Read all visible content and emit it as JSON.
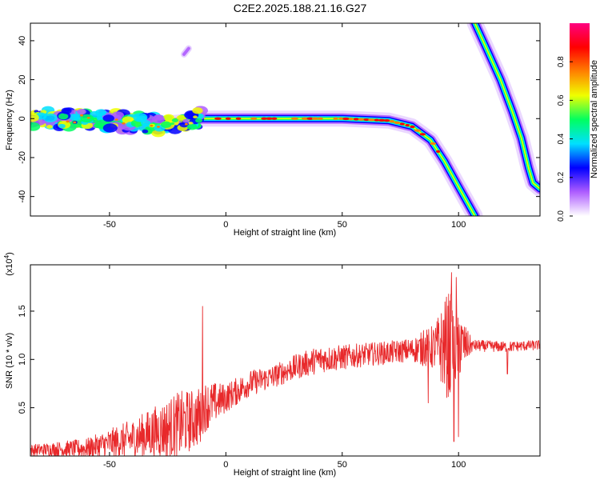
{
  "title": "C2E2.2025.188.21.16.G27",
  "chart_data": [
    {
      "type": "heatmap",
      "xlabel": "Height of straight line (km)",
      "ylabel": "Frequency (Hz)",
      "xlim": [
        -84,
        135
      ],
      "ylim": [
        -50,
        49
      ],
      "xticks": [
        -50,
        0,
        50,
        100
      ],
      "yticks": [
        40,
        20,
        0,
        -20,
        -40
      ],
      "colorbar": {
        "label": "Normalized spectral amplitude",
        "range": [
          0,
          1
        ],
        "ticks": [
          "0.0",
          "0.2",
          "0.4",
          "0.6",
          "0.8"
        ],
        "colors": [
          "#ffffff",
          "#ae5cff",
          "#0000ff",
          "#00e0ff",
          "#00ff60",
          "#f0ff00",
          "#ff8000",
          "#ff0000",
          "#ff0080"
        ]
      },
      "traces": [
        {
          "name": "",
          "points": [
            [
              -84,
              0
            ],
            [
              -60,
              0
            ],
            [
              -40,
              -2
            ],
            [
              -30,
              -3
            ],
            [
              -20,
              -2
            ],
            [
              -12,
              0
            ],
            [
              0,
              0
            ],
            [
              20,
              0
            ],
            [
              50,
              0
            ],
            [
              70,
              -1
            ],
            [
              80,
              -4
            ],
            [
              88,
              -11
            ],
            [
              94,
              -22
            ],
            [
              100,
              -35
            ],
            [
              107,
              -50
            ]
          ]
        },
        {
          "name": "",
          "points": [
            [
              107,
              49
            ],
            [
              112,
              36
            ],
            [
              118,
              20
            ],
            [
              123,
              4
            ],
            [
              127,
              -10
            ],
            [
              130,
              -25
            ],
            [
              132,
              -33
            ],
            [
              135,
              -36
            ]
          ]
        },
        {
          "name": "",
          "points": [
            [
              -18,
              33
            ],
            [
              -16,
              36
            ]
          ]
        }
      ]
    },
    {
      "type": "line",
      "xlabel": "Height of straight line (km)",
      "ylabel": "SNR (10 * v/v)",
      "y_multiplier": "(x10^4)",
      "y_multiplier_base": "(x10",
      "y_multiplier_exp": "4",
      "y_multiplier_close": ")",
      "xlim": [
        -84,
        135
      ],
      "ylim": [
        0,
        1.98
      ],
      "xticks": [
        -50,
        0,
        50,
        100
      ],
      "yticks": [
        0.5,
        1.0,
        1.5
      ],
      "series": [
        {
          "color": "#e8292b",
          "trend": [
            [
              -84,
              0.06
            ],
            [
              -60,
              0.08
            ],
            [
              -40,
              0.18
            ],
            [
              -20,
              0.32
            ],
            [
              -12,
              0.4
            ],
            [
              -10,
              0.5
            ],
            [
              0,
              0.6
            ],
            [
              10,
              0.75
            ],
            [
              20,
              0.82
            ],
            [
              30,
              0.92
            ],
            [
              40,
              1.0
            ],
            [
              50,
              1.02
            ],
            [
              60,
              1.05
            ],
            [
              70,
              1.07
            ],
            [
              80,
              1.1
            ],
            [
              88,
              1.12
            ],
            [
              95,
              1.14
            ],
            [
              100,
              1.15
            ],
            [
              110,
              1.14
            ],
            [
              120,
              1.13
            ],
            [
              135,
              1.15
            ]
          ],
          "noise": [
            [
              -84,
              0.06
            ],
            [
              -60,
              0.1
            ],
            [
              -40,
              0.2
            ],
            [
              -20,
              0.35
            ],
            [
              -12,
              0.3
            ],
            [
              0,
              0.15
            ],
            [
              20,
              0.12
            ],
            [
              40,
              0.14
            ],
            [
              60,
              0.12
            ],
            [
              80,
              0.12
            ],
            [
              90,
              0.25
            ],
            [
              96,
              0.6
            ],
            [
              103,
              0.2
            ],
            [
              106,
              0.06
            ],
            [
              135,
              0.05
            ]
          ],
          "spikes": [
            [
              -10,
              1.55
            ],
            [
              -11,
              0.15
            ],
            [
              85,
              1.3
            ],
            [
              87,
              0.55
            ],
            [
              97,
              1.9
            ],
            [
              98,
              0.15
            ],
            [
              99,
              1.85
            ],
            [
              100,
              0.2
            ],
            [
              101,
              1.35
            ],
            [
              121,
              0.85
            ]
          ]
        }
      ]
    }
  ]
}
